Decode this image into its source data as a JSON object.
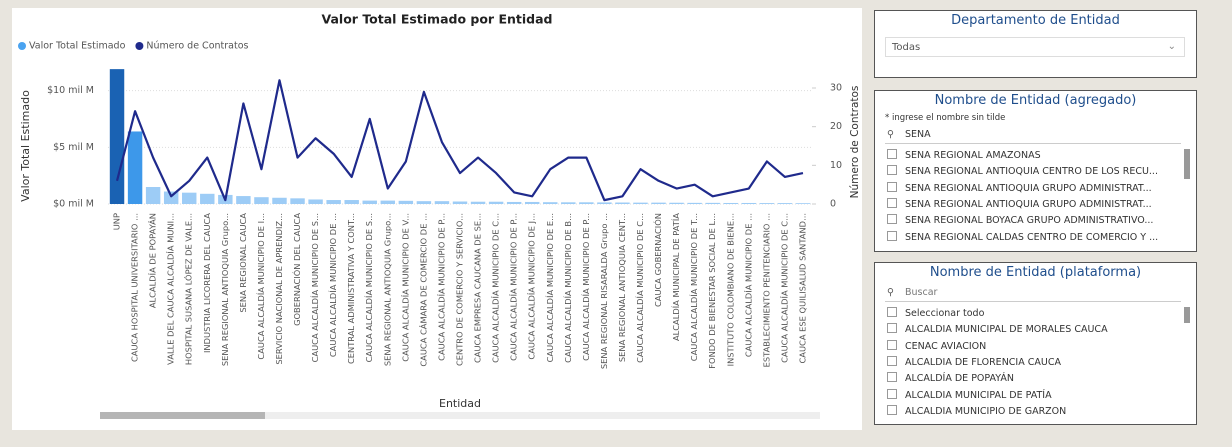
{
  "chart_data": {
    "type": "bar_line",
    "title": "Valor Total Estimado por Entidad",
    "x_label": "Entidad",
    "y_label": "Valor Total Estimado",
    "y2_label": "Número de Contratos",
    "categories": [
      "UNP",
      "CAUCA HOSPITAL UNIVERSITARIO ...",
      "ALCALDÍA DE POPAYÁN",
      "VALLE DEL CAUCA ALCALDÍA MUNI...",
      "HOSPITAL SUSANA LÓPEZ DE VALE...",
      "INDUSTRIA LICORERA DEL CAUCA",
      "SENA REGIONAL ANTIOQUIA Grupo...",
      "SENA REGIONAL CAUCA",
      "CAUCA ALCALDÍA MUNICIPIO DE I...",
      "SERVICIO NACIONAL DE APRENDIZ...",
      "GOBERNACIÓN DEL CAUCA",
      "CAUCA ALCALDÍA MUNICIPIO DE S...",
      "CAUCA ALCALDÍA MUNICIPIO DE ...",
      "CENTRAL ADMINISTRATIVA Y CONT...",
      "CAUCA ALCALDÍA MUNICIPIO DE S...",
      "SENA REGIONAL ANTIOQUIA Grupo...",
      "CAUCA ALCALDÍA MUNICIPIO DE V...",
      "CAUCA CÁMARA DE COMERCIO DE ...",
      "CAUCA ALCALDÍA MUNICIPIO DE P...",
      "CENTRO DE COMERCIO Y SERVICIO...",
      "CAUCA EMPRESA CAUCANA DE SE...",
      "CAUCA ALCALDÍA MUNICIPIO DE C...",
      "CAUCA ALCALDÍA MUNICIPIO DE P...",
      "CAUCA ALCALDÍA MUNICIPIO DE J...",
      "CAUCA ALCALDÍA MUNICIPIO DE E...",
      "CAUCA ALCALDÍA MUNICIPIO DE B...",
      "CAUCA ALCALDÍA MUNICIPIO DE P...",
      "SENA REGIONAL RISARALDA Grupo ...",
      "SENA REGIONAL ANTIOQUIA CENT...",
      "CAUCA ALCALDÍA MUNICIPIO DE C...",
      "CAUCA GOBERNACIÓN",
      "ALCALDÍA MUNICIPAL DE PATÍA",
      "CAUCA ALCALDÍA MUNICIPIO DE T...",
      "FONDO DE BIENESTAR SOCIAL DE L...",
      "INSTITUTO COLOMBIANO DE BIENE...",
      "CAUCA ALCALDÍA MUNICIPIO DE ...",
      "ESTABLECIMIENTO PENITENCIARIO ...",
      "CAUCA ALCALDÍA MUNICIPIO DE C...",
      "CAUCA ESE QUILISALUD SANTAND..."
    ],
    "series": [
      {
        "name": "Valor Total Estimado",
        "type": "bar",
        "color": "#4aa3f0",
        "colors": [
          "#1a62b3",
          "#3d98ea",
          "#9dccf6",
          "#9dccf6",
          "#9dccf6",
          "#9dccf6",
          "#9dccf6",
          "#9dccf6",
          "#9dccf6",
          "#9dccf6",
          "#9dccf6",
          "#9dccf6",
          "#9dccf6",
          "#9dccf6",
          "#9dccf6",
          "#9dccf6",
          "#9dccf6",
          "#9dccf6",
          "#9dccf6",
          "#9dccf6",
          "#9dccf6",
          "#9dccf6",
          "#9dccf6",
          "#9dccf6",
          "#9dccf6",
          "#9dccf6",
          "#9dccf6",
          "#9dccf6",
          "#9dccf6",
          "#9dccf6",
          "#9dccf6",
          "#9dccf6",
          "#9dccf6",
          "#9dccf6",
          "#9dccf6",
          "#9dccf6",
          "#9dccf6",
          "#9dccf6",
          "#9dccf6"
        ],
        "values": [
          11.9,
          6.4,
          1.5,
          1.1,
          1.0,
          0.9,
          0.8,
          0.7,
          0.6,
          0.55,
          0.5,
          0.4,
          0.35,
          0.35,
          0.3,
          0.3,
          0.28,
          0.25,
          0.25,
          0.22,
          0.2,
          0.2,
          0.18,
          0.18,
          0.16,
          0.15,
          0.15,
          0.14,
          0.13,
          0.12,
          0.12,
          0.11,
          0.1,
          0.1,
          0.09,
          0.09,
          0.08,
          0.08,
          0.07
        ]
      },
      {
        "name": "Número de Contratos",
        "type": "line",
        "axis": "y2",
        "color": "#1f2a8c",
        "values": [
          6,
          24,
          12,
          2,
          6,
          12,
          1,
          26,
          9,
          32,
          12,
          17,
          13,
          7,
          22,
          4,
          11,
          29,
          16,
          8,
          12,
          8,
          3,
          2,
          9,
          12,
          12,
          1,
          2,
          9,
          6,
          4,
          5,
          2,
          3,
          4,
          11,
          7,
          8
        ]
      }
    ],
    "ylim": [
      0,
      12
    ],
    "yticks": [
      {
        "value": 0,
        "label": "$0 mil M"
      },
      {
        "value": 5,
        "label": "$5 mil M"
      },
      {
        "value": 10,
        "label": "$10 mil M"
      }
    ],
    "y2lim": [
      0,
      30
    ],
    "y2ticks": [
      0,
      10,
      20,
      30
    ],
    "grid": true
  },
  "slicers": [
    {
      "title": "Departamento de Entidad",
      "dropdown": "Todas"
    },
    {
      "title": "Nombre de Entidad (agregado)",
      "hint": "* ingrese el nombre sin tilde",
      "search": "SENA",
      "items": [
        "SENA REGIONAL AMAZONAS",
        "SENA REGIONAL ANTIOQUIA CENTRO DE LOS RECU...",
        "SENA REGIONAL ANTIOQUIA GRUPO ADMINISTRAT...",
        "SENA REGIONAL ANTIOQUIA GRUPO ADMINISTRAT...",
        "SENA REGIONAL BOYACA GRUPO ADMINISTRATIVO...",
        "SENA REGIONAL CALDAS CENTRO DE COMERCIO Y ..."
      ]
    },
    {
      "title": "Nombre de Entidad (plataforma)",
      "search": "Buscar",
      "items": [
        "Seleccionar todo",
        "ALCALDIA MUNICIPAL DE MORALES CAUCA",
        "CENAC AVIACION",
        "ALCALDIA DE FLORENCIA CAUCA",
        "ALCALDÍA DE POPAYÁN",
        "ALCALDIA MUNICIPAL DE PATÍA",
        "ALCALDIA MUNICIPIO DE GARZON"
      ]
    }
  ]
}
